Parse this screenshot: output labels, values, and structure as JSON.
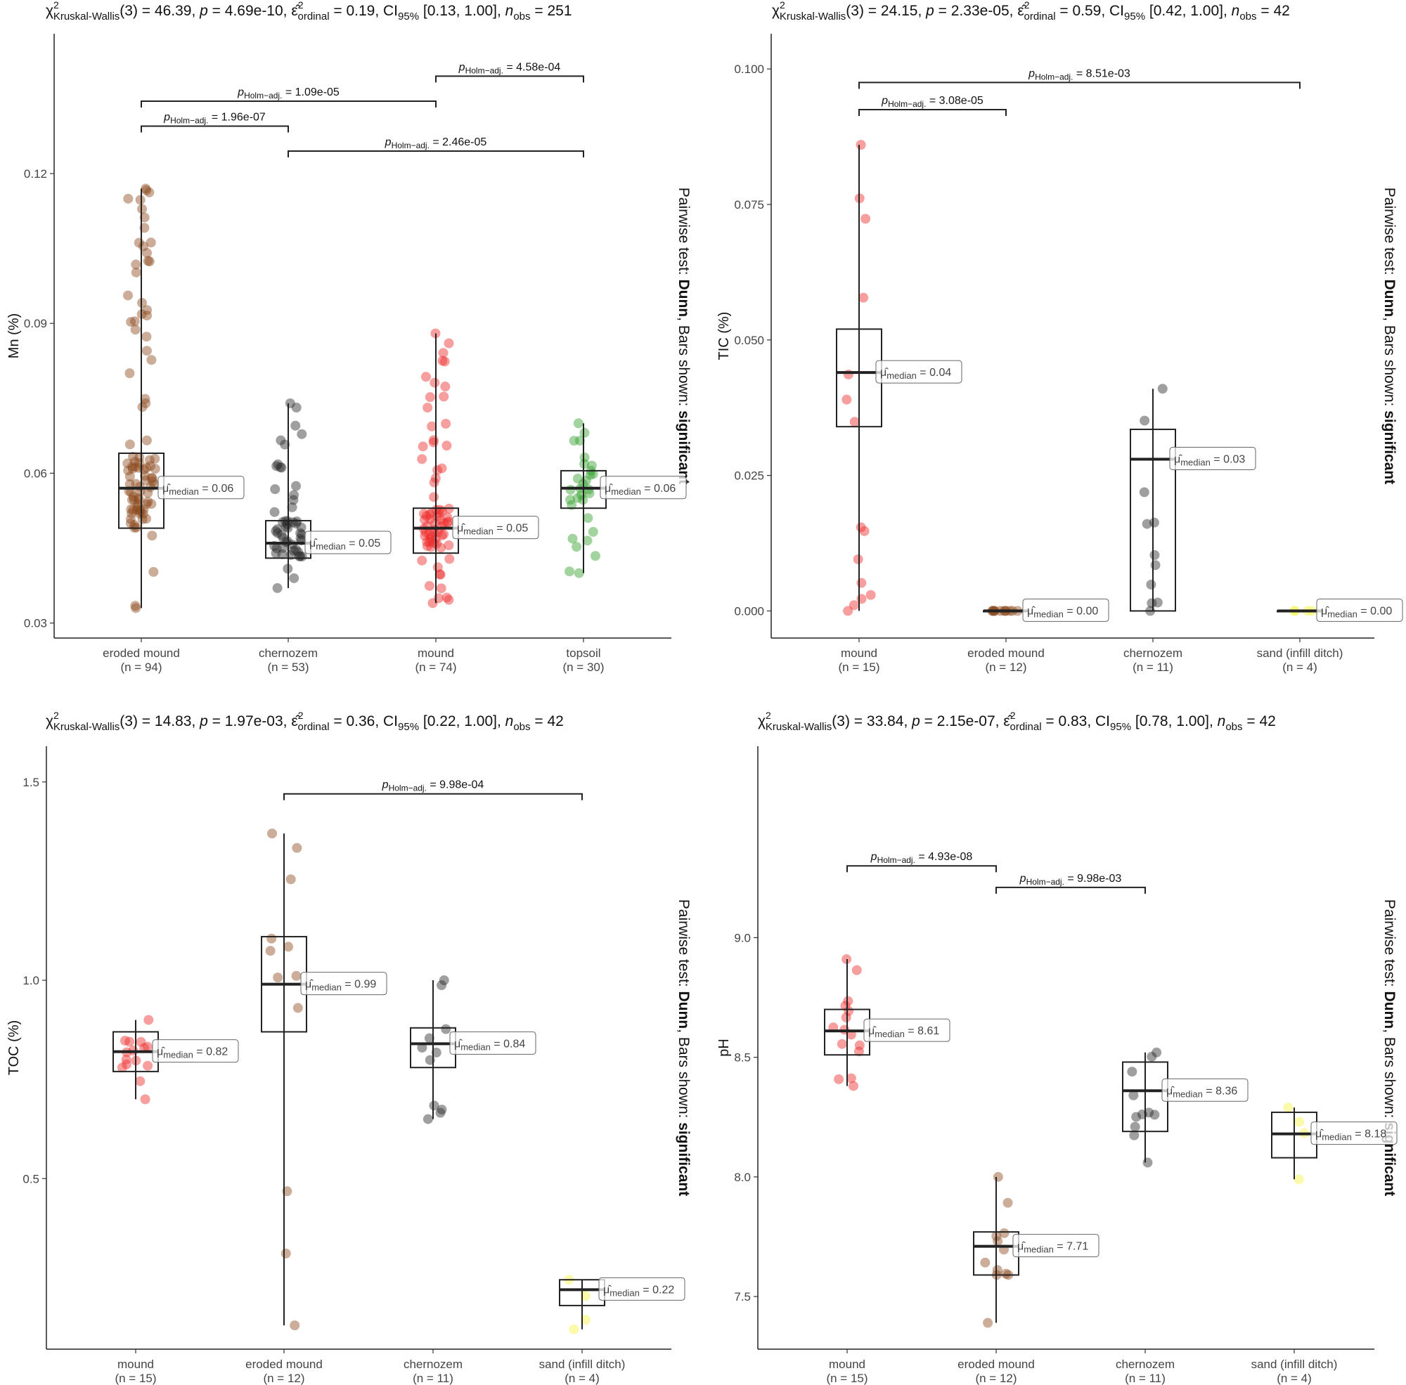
{
  "chart_data": [
    {
      "type": "box",
      "ylabel": "Mn (%)",
      "ylim": [
        0.027,
        0.148
      ],
      "yticks": [
        "0.03",
        "0.06",
        "0.09",
        "0.12"
      ],
      "yticks_values": [
        0.03,
        0.06,
        0.09,
        0.12
      ],
      "stats": {
        "statistic": "Kruskal-Wallis",
        "df": "3",
        "chi2": "46.39",
        "p": "4.69e-10",
        "epsilon": "0.19",
        "ci": "[0.13, 1.00]",
        "nobs": "251"
      },
      "side_label": {
        "prefix": "Pairwise test: ",
        "test": "Dunn",
        "middle": ", Bars shown: ",
        "shown": "significant"
      },
      "groups": [
        {
          "name": "eroded mound",
          "n": "(n = 94)",
          "color": "#8c4a1c",
          "median": 0.057,
          "median_label": "0.06",
          "q1": 0.049,
          "q3": 0.064,
          "whisker_low": 0.033,
          "whisker_high": 0.117
        },
        {
          "name": "chernozem",
          "n": "(n = 53)",
          "color": "#2b2b2b",
          "median": 0.046,
          "median_label": "0.05",
          "q1": 0.043,
          "q3": 0.0505,
          "whisker_low": 0.037,
          "whisker_high": 0.074
        },
        {
          "name": "mound",
          "n": "(n = 74)",
          "color": "#ee2a2a",
          "median": 0.049,
          "median_label": "0.05",
          "q1": 0.044,
          "q3": 0.053,
          "whisker_low": 0.034,
          "whisker_high": 0.088
        },
        {
          "name": "topsoil",
          "n": "(n = 30)",
          "color": "#33a02c",
          "median": 0.057,
          "median_label": "0.06",
          "q1": 0.053,
          "q3": 0.0605,
          "whisker_low": 0.04,
          "whisker_high": 0.07
        }
      ],
      "comparisons": [
        {
          "from": 0,
          "to": 1,
          "y": 0.1295,
          "p": "1.96e-07"
        },
        {
          "from": 1,
          "to": 3,
          "y": 0.1245,
          "p": "2.46e-05"
        },
        {
          "from": 0,
          "to": 2,
          "y": 0.1345,
          "p": "1.09e-05"
        },
        {
          "from": 2,
          "to": 3,
          "y": 0.1395,
          "p": "4.58e-04"
        }
      ]
    },
    {
      "type": "box",
      "ylabel": "TIC (%)",
      "ylim": [
        -0.005,
        0.1065
      ],
      "yticks": [
        "0.000",
        "0.025",
        "0.050",
        "0.075",
        "0.100"
      ],
      "yticks_values": [
        0,
        0.025,
        0.05,
        0.075,
        0.1
      ],
      "stats": {
        "statistic": "Kruskal-Wallis",
        "df": "3",
        "chi2": "24.15",
        "p": "2.33e-05",
        "epsilon": "0.59",
        "ci": "[0.42, 1.00]",
        "nobs": "42"
      },
      "side_label": {
        "prefix": "Pairwise test: ",
        "test": "Dunn",
        "middle": ", Bars shown: ",
        "shown": "significant"
      },
      "groups": [
        {
          "name": "mound",
          "n": "(n = 15)",
          "color": "#ee2a2a",
          "median": 0.044,
          "median_label": "0.04",
          "q1": 0.034,
          "q3": 0.052,
          "whisker_low": 0.0,
          "whisker_high": 0.086
        },
        {
          "name": "eroded mound",
          "n": "(n = 12)",
          "color": "#8c4a1c",
          "median": 0.0,
          "median_label": "0.00",
          "q1": 0.0,
          "q3": 0.0,
          "whisker_low": 0.0,
          "whisker_high": 0.0
        },
        {
          "name": "chernozem",
          "n": "(n = 11)",
          "color": "#2b2b2b",
          "median": 0.028,
          "median_label": "0.03",
          "q1": 0.0,
          "q3": 0.0335,
          "whisker_low": 0.0,
          "whisker_high": 0.041
        },
        {
          "name": "sand (infill ditch)",
          "n": "(n = 4)",
          "color": "#f5f543",
          "median": 0.0,
          "median_label": "0.00",
          "q1": 0.0,
          "q3": 0.0,
          "whisker_low": 0.0,
          "whisker_high": 0.0
        }
      ],
      "comparisons": [
        {
          "from": 0,
          "to": 1,
          "y": 0.0925,
          "p": "3.08e-05"
        },
        {
          "from": 0,
          "to": 3,
          "y": 0.0975,
          "p": "8.51e-03"
        }
      ]
    },
    {
      "type": "box",
      "ylabel": "TOC (%)",
      "ylim": [
        0.07,
        1.59
      ],
      "yticks": [
        "0.5",
        "1.0",
        "1.5"
      ],
      "yticks_values": [
        0.5,
        1.0,
        1.5
      ],
      "stats": {
        "statistic": "Kruskal-Wallis",
        "df": "3",
        "chi2": "14.83",
        "p": "1.97e-03",
        "epsilon": "0.36",
        "ci": "[0.22, 1.00]",
        "nobs": "42"
      },
      "side_label": {
        "prefix": "Pairwise test: ",
        "test": "Dunn",
        "middle": ", Bars shown: ",
        "shown": "significant"
      },
      "groups": [
        {
          "name": "mound",
          "n": "(n = 15)",
          "color": "#ee2a2a",
          "median": 0.82,
          "median_label": "0.82",
          "q1": 0.77,
          "q3": 0.87,
          "whisker_low": 0.7,
          "whisker_high": 0.9
        },
        {
          "name": "eroded mound",
          "n": "(n = 12)",
          "color": "#8c4a1c",
          "median": 0.99,
          "median_label": "0.99",
          "q1": 0.87,
          "q3": 1.11,
          "whisker_low": 0.13,
          "whisker_high": 1.37
        },
        {
          "name": "chernozem",
          "n": "(n = 11)",
          "color": "#2b2b2b",
          "median": 0.84,
          "median_label": "0.84",
          "q1": 0.78,
          "q3": 0.88,
          "whisker_low": 0.65,
          "whisker_high": 1.0
        },
        {
          "name": "sand (infill ditch)",
          "n": "(n = 4)",
          "color": "#f5f543",
          "median": 0.22,
          "median_label": "0.22",
          "q1": 0.18,
          "q3": 0.245,
          "whisker_low": 0.12,
          "whisker_high": 0.245
        }
      ],
      "comparisons": [
        {
          "from": 1,
          "to": 3,
          "y": 1.47,
          "p": "9.98e-04"
        }
      ]
    },
    {
      "type": "box",
      "ylabel": "pH",
      "ylim": [
        7.28,
        9.8
      ],
      "yticks": [
        "7.5",
        "8.0",
        "8.5",
        "9.0"
      ],
      "yticks_values": [
        7.5,
        8.0,
        8.5,
        9.0
      ],
      "stats": {
        "statistic": "Kruskal-Wallis",
        "df": "3",
        "chi2": "33.84",
        "p": "2.15e-07",
        "epsilon": "0.83",
        "ci": "[0.78, 1.00]",
        "nobs": "42"
      },
      "side_label": {
        "prefix": "Pairwise test: ",
        "test": "Dunn",
        "middle": ", Bars shown: ",
        "shown": "significant"
      },
      "groups": [
        {
          "name": "mound",
          "n": "(n = 15)",
          "color": "#ee2a2a",
          "median": 8.61,
          "median_label": "8.61",
          "q1": 8.51,
          "q3": 8.7,
          "whisker_low": 8.38,
          "whisker_high": 8.91
        },
        {
          "name": "eroded mound",
          "n": "(n = 12)",
          "color": "#8c4a1c",
          "median": 7.71,
          "median_label": "7.71",
          "q1": 7.59,
          "q3": 7.77,
          "whisker_low": 7.39,
          "whisker_high": 8.0
        },
        {
          "name": "chernozem",
          "n": "(n = 11)",
          "color": "#2b2b2b",
          "median": 8.36,
          "median_label": "8.36",
          "q1": 8.19,
          "q3": 8.48,
          "whisker_low": 8.06,
          "whisker_high": 8.52
        },
        {
          "name": "sand (infill ditch)",
          "n": "(n = 4)",
          "color": "#f5f543",
          "median": 8.18,
          "median_label": "8.18",
          "q1": 8.08,
          "q3": 8.27,
          "whisker_low": 7.99,
          "whisker_high": 8.29
        }
      ],
      "comparisons": [
        {
          "from": 0,
          "to": 1,
          "y": 9.3,
          "p": "4.93e-08"
        },
        {
          "from": 1,
          "to": 2,
          "y": 9.21,
          "p": "9.98e-03"
        }
      ]
    }
  ]
}
